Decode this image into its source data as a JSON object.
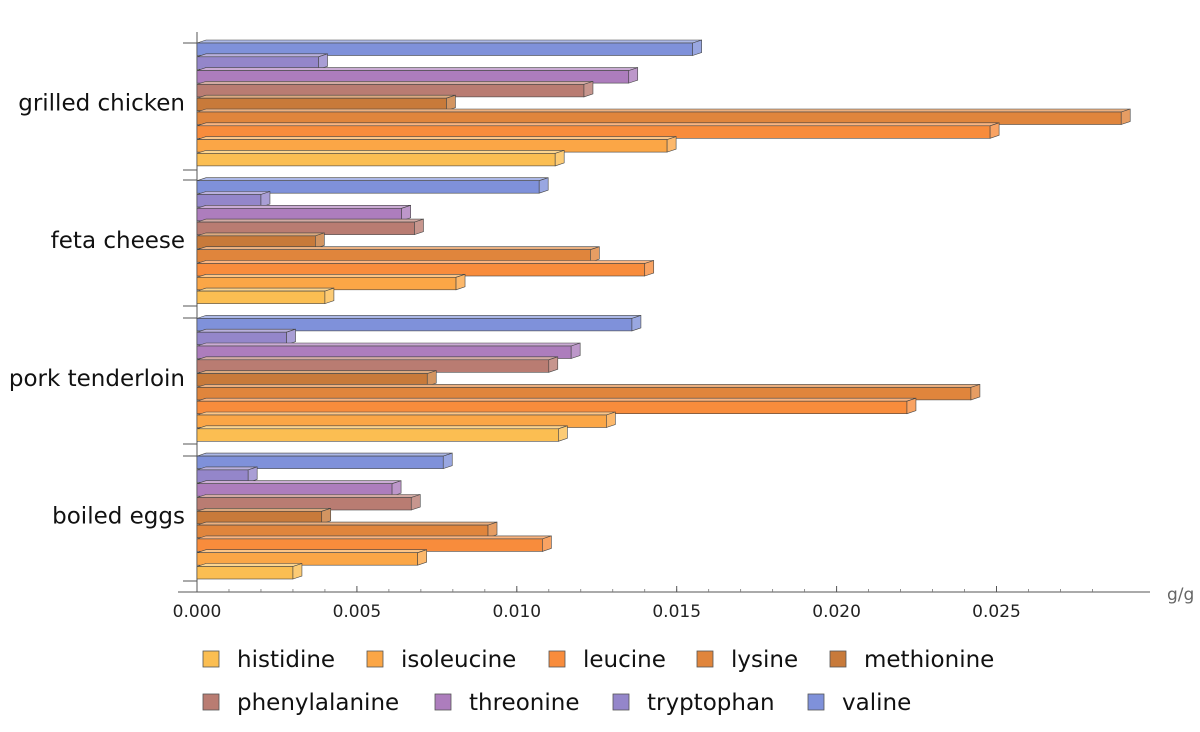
{
  "chart_data": {
    "type": "bar",
    "orientation": "horizontal",
    "style": "3d-bars",
    "xlabel": "g/g",
    "xlim": [
      0,
      0.03
    ],
    "x_ticks": [
      "0.000",
      "0.005",
      "0.010",
      "0.015",
      "0.020",
      "0.025"
    ],
    "x_tick_values": [
      0,
      0.005,
      0.01,
      0.015,
      0.02,
      0.025
    ],
    "grid": false,
    "legend_position": "bottom",
    "categories": [
      "grilled chicken",
      "feta cheese",
      "pork tenderloin",
      "boiled eggs"
    ],
    "series": [
      {
        "name": "histidine",
        "color": "#FBBE52",
        "values": [
          0.0112,
          0.004,
          0.0113,
          0.003
        ]
      },
      {
        "name": "isoleucine",
        "color": "#FBA646",
        "values": [
          0.0147,
          0.0081,
          0.0128,
          0.0069
        ]
      },
      {
        "name": "leucine",
        "color": "#F88C3C",
        "values": [
          0.0248,
          0.014,
          0.0222,
          0.0108
        ]
      },
      {
        "name": "lysine",
        "color": "#E0853C",
        "values": [
          0.0289,
          0.0123,
          0.0242,
          0.0091
        ]
      },
      {
        "name": "methionine",
        "color": "#C87A3A",
        "values": [
          0.0078,
          0.0037,
          0.0072,
          0.0039
        ]
      },
      {
        "name": "phenylalanine",
        "color": "#B97C72",
        "values": [
          0.0121,
          0.0068,
          0.011,
          0.0067
        ]
      },
      {
        "name": "threonine",
        "color": "#AD7DBD",
        "values": [
          0.0135,
          0.0064,
          0.0117,
          0.0061
        ]
      },
      {
        "name": "tryptophan",
        "color": "#9486CA",
        "values": [
          0.0038,
          0.002,
          0.0028,
          0.0016
        ]
      },
      {
        "name": "valine",
        "color": "#7F91DA",
        "values": [
          0.0155,
          0.0107,
          0.0136,
          0.0077
        ]
      }
    ]
  }
}
